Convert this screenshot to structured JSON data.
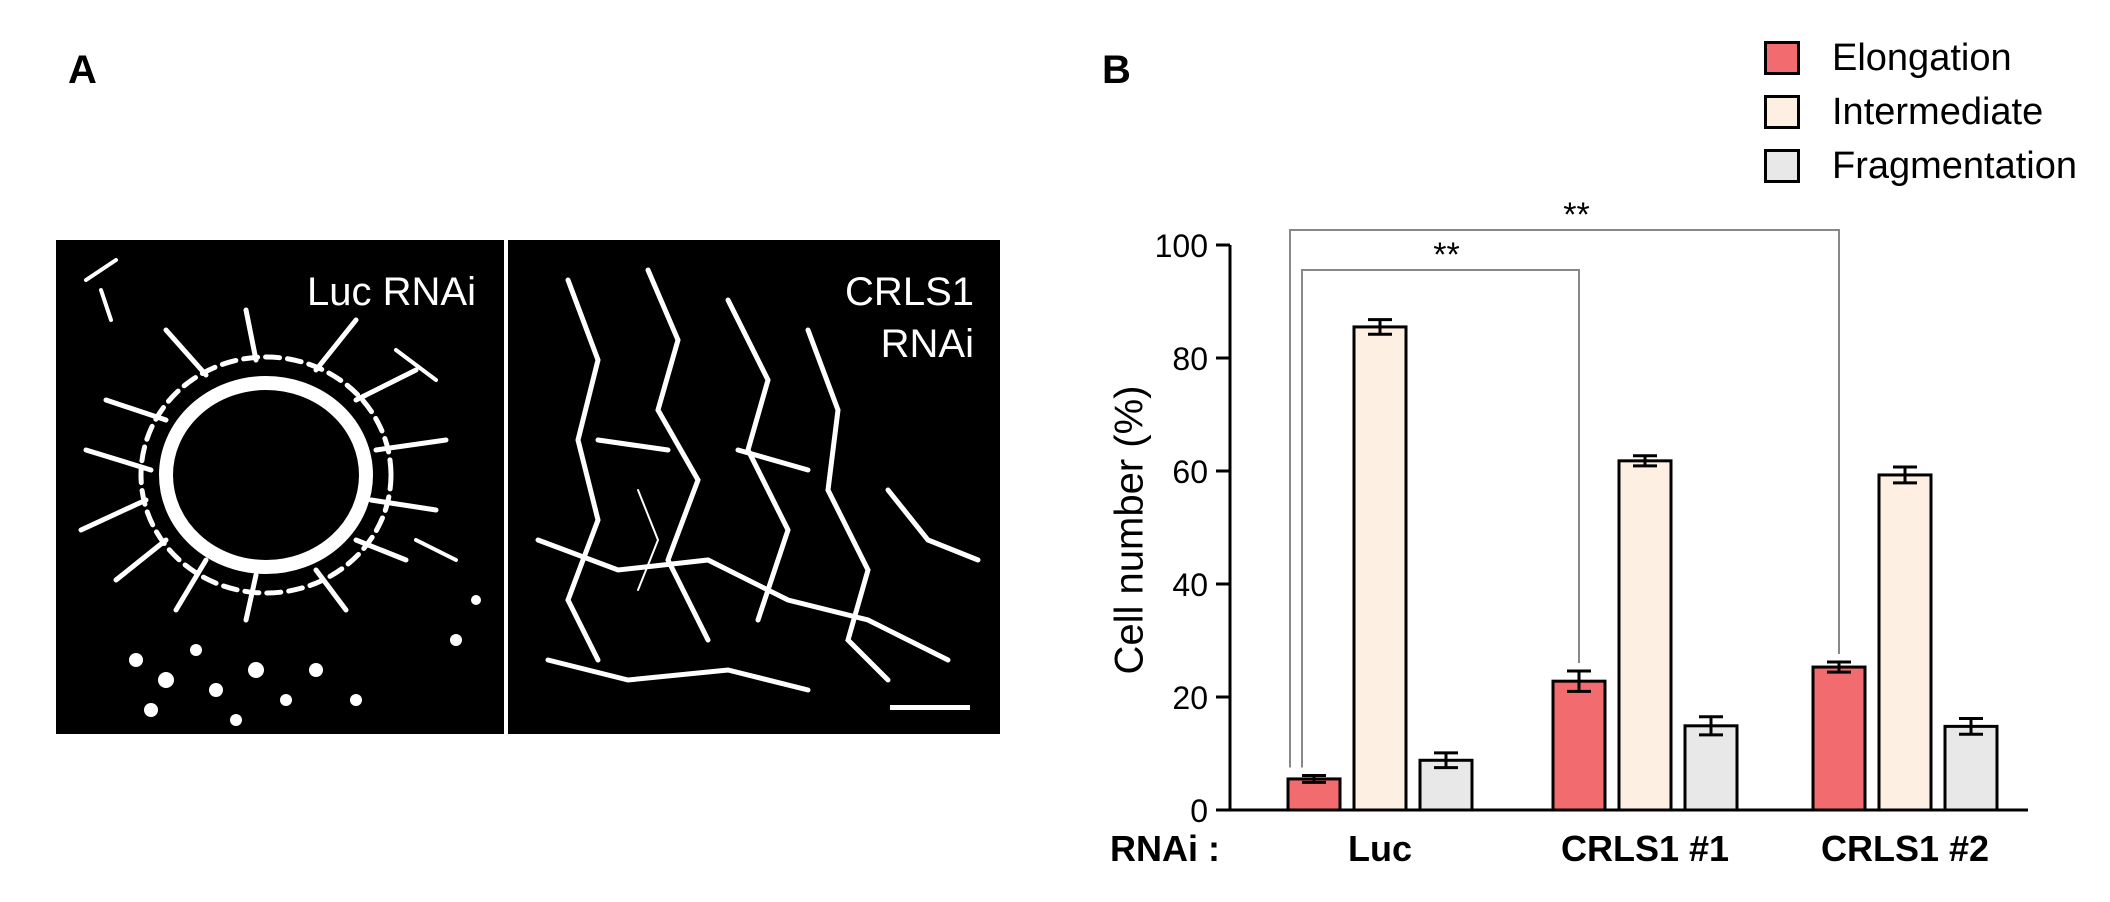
{
  "panel_a": {
    "letter": "A",
    "left_label_line1": "Luc RNAi",
    "right_label_line1": "CRLS1",
    "right_label_line2": "RNAi"
  },
  "panel_b": {
    "letter": "B"
  },
  "x_axis_prefix": "RNAi :",
  "chart_data": {
    "type": "bar",
    "categories": [
      "Luc",
      "CRLS1 #1",
      "CRLS1 #2"
    ],
    "series": [
      {
        "name": "Elongation",
        "values": [
          5.5,
          22.8,
          25.3
        ],
        "errors": [
          0.6,
          1.8,
          0.9
        ],
        "color": "#f26b6e"
      },
      {
        "name": "Intermediate",
        "values": [
          85.5,
          61.8,
          59.3
        ],
        "errors": [
          1.3,
          0.9,
          1.4
        ],
        "color": "#fdf0e2"
      },
      {
        "name": "Fragmentation",
        "values": [
          8.8,
          14.9,
          14.8
        ],
        "errors": [
          1.3,
          1.6,
          1.4
        ],
        "color": "#e8e8e8"
      }
    ],
    "ylabel": "Cell number (%)",
    "ylim": [
      0,
      100
    ],
    "yticks": [
      0,
      20,
      40,
      60,
      80,
      100
    ],
    "legend_position": "top-right",
    "grid": false,
    "significance": [
      {
        "from": "Luc",
        "to": "CRLS1 #1",
        "series": "Elongation",
        "label": "**"
      },
      {
        "from": "Luc",
        "to": "CRLS1 #2",
        "series": "Elongation",
        "label": "**"
      }
    ]
  }
}
